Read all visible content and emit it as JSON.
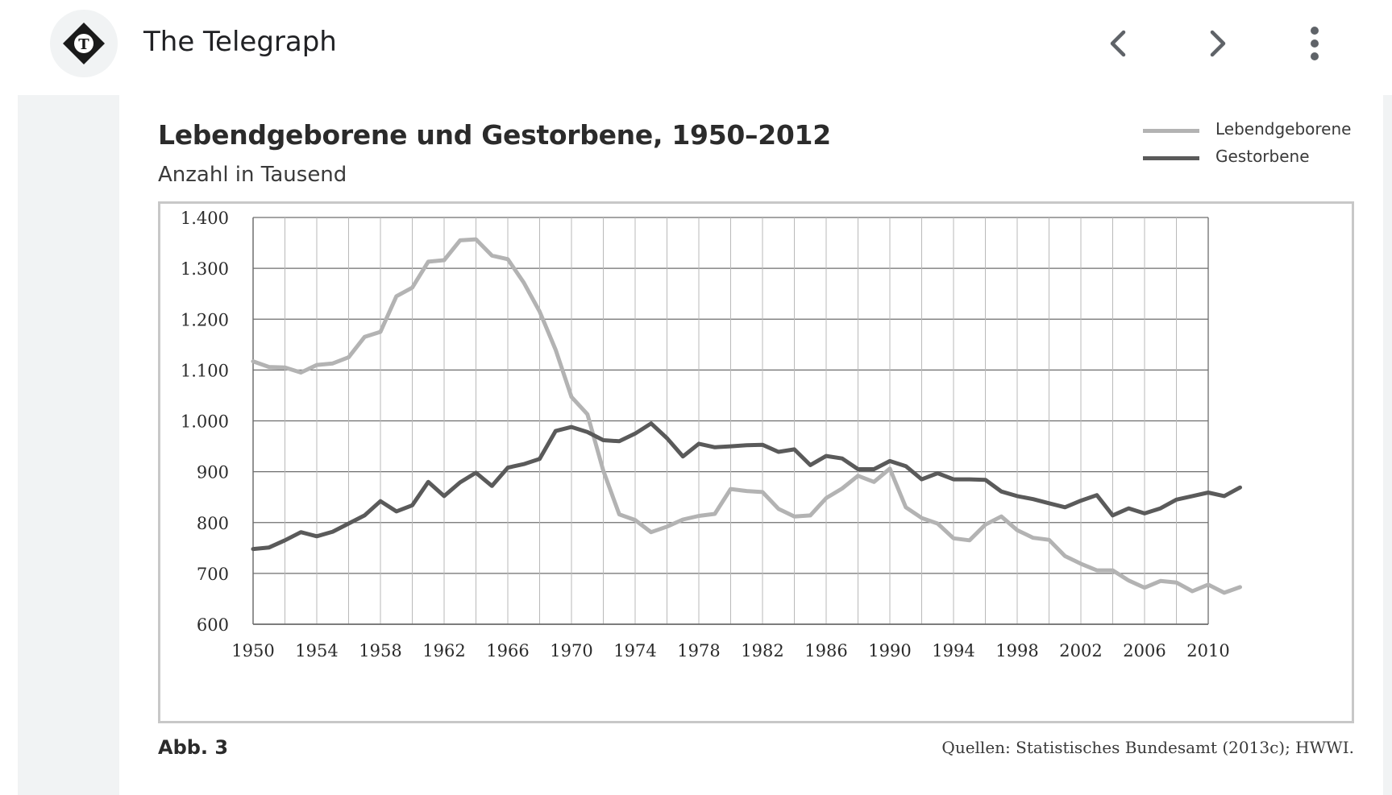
{
  "header": {
    "site_title": "The Telegraph",
    "logo_icon": "telegraph-logo-icon",
    "back_icon": "chevron-left-icon",
    "forward_icon": "chevron-right-icon",
    "menu_icon": "more-vert-icon"
  },
  "figure": {
    "label": "Abb. 3",
    "source": "Quellen: Statistisches Bundesamt (2013c); HWWI."
  },
  "chart_data": {
    "type": "line",
    "title": "Lebendgeborene und Gestorbene, 1950–2012",
    "subtitle": "Anzahl in Tausend",
    "xlabel": "",
    "ylabel": "",
    "xlim": [
      1950,
      2012
    ],
    "ylim": [
      600,
      1400
    ],
    "x_ticks": [
      1950,
      1954,
      1958,
      1962,
      1966,
      1970,
      1974,
      1978,
      1982,
      1986,
      1990,
      1994,
      1998,
      2002,
      2006,
      2010
    ],
    "y_ticks": [
      600,
      700,
      800,
      900,
      1000,
      1100,
      1200,
      1300,
      1400
    ],
    "y_tick_labels": [
      "600",
      "700",
      "800",
      "900",
      "1.000",
      "1.100",
      "1.200",
      "1.300",
      "1.400"
    ],
    "grid": true,
    "legend_position": "top-right",
    "x": [
      1950,
      1951,
      1952,
      1953,
      1954,
      1955,
      1956,
      1957,
      1958,
      1959,
      1960,
      1961,
      1962,
      1963,
      1964,
      1965,
      1966,
      1967,
      1968,
      1969,
      1970,
      1971,
      1972,
      1973,
      1974,
      1975,
      1976,
      1977,
      1978,
      1979,
      1980,
      1981,
      1982,
      1983,
      1984,
      1985,
      1986,
      1987,
      1988,
      1989,
      1990,
      1991,
      1992,
      1993,
      1994,
      1995,
      1996,
      1997,
      1998,
      1999,
      2000,
      2001,
      2002,
      2003,
      2004,
      2005,
      2006,
      2007,
      2008,
      2009,
      2010,
      2011,
      2012
    ],
    "series": [
      {
        "name": "Lebendgeborene",
        "color": "#b3b3b3",
        "values": [
          1117,
          1106,
          1105,
          1095,
          1110,
          1113,
          1125,
          1165,
          1175,
          1245,
          1262,
          1313,
          1316,
          1355,
          1357,
          1325,
          1318,
          1272,
          1215,
          1140,
          1047,
          1013,
          902,
          816,
          805,
          781,
          792,
          806,
          813,
          817,
          866,
          862,
          860,
          827,
          812,
          814,
          848,
          867,
          892,
          880,
          906,
          830,
          809,
          798,
          769,
          765,
          796,
          812,
          785,
          770,
          766,
          734,
          719,
          706,
          706,
          686,
          672,
          685,
          682,
          665,
          678,
          662,
          673
        ]
      },
      {
        "name": "Gestorbene",
        "color": "#5a5a5a",
        "values": [
          748,
          751,
          765,
          781,
          773,
          782,
          798,
          814,
          842,
          822,
          834,
          880,
          852,
          879,
          898,
          872,
          908,
          915,
          925,
          980,
          988,
          978,
          962,
          960,
          975,
          995,
          966,
          930,
          955,
          948,
          950,
          952,
          953,
          939,
          944,
          913,
          931,
          926,
          905,
          905,
          921,
          911,
          885,
          897,
          885,
          885,
          884,
          861,
          852,
          846,
          838,
          830,
          843,
          854,
          814,
          828,
          818,
          828,
          845,
          852,
          859,
          852,
          869
        ]
      }
    ]
  }
}
